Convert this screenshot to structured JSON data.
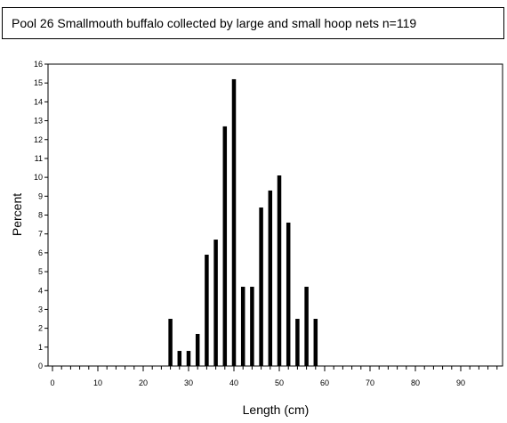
{
  "chart_data": {
    "type": "bar",
    "title": "Pool 26 Smallmouth buffalo collected by large and small hoop nets   n=119",
    "xlabel": "Length (cm)",
    "ylabel": "Percent",
    "xlim": [
      0,
      98
    ],
    "ylim": [
      0,
      16
    ],
    "x_ticks": [
      0,
      10,
      20,
      30,
      40,
      50,
      60,
      70,
      80,
      90
    ],
    "y_ticks": [
      0,
      1,
      2,
      3,
      4,
      5,
      6,
      7,
      8,
      9,
      10,
      11,
      12,
      13,
      14,
      15,
      16
    ],
    "x_minor_tick_step": 2,
    "grid": false,
    "x": [
      26,
      28,
      30,
      32,
      34,
      36,
      38,
      40,
      42,
      44,
      46,
      48,
      50,
      52,
      54,
      56,
      58
    ],
    "values": [
      2.5,
      0.8,
      0.8,
      1.7,
      5.9,
      6.7,
      12.7,
      15.2,
      4.2,
      4.2,
      8.4,
      9.3,
      10.1,
      7.6,
      2.5,
      4.2,
      2.5
    ],
    "bar_color": "#000000"
  }
}
